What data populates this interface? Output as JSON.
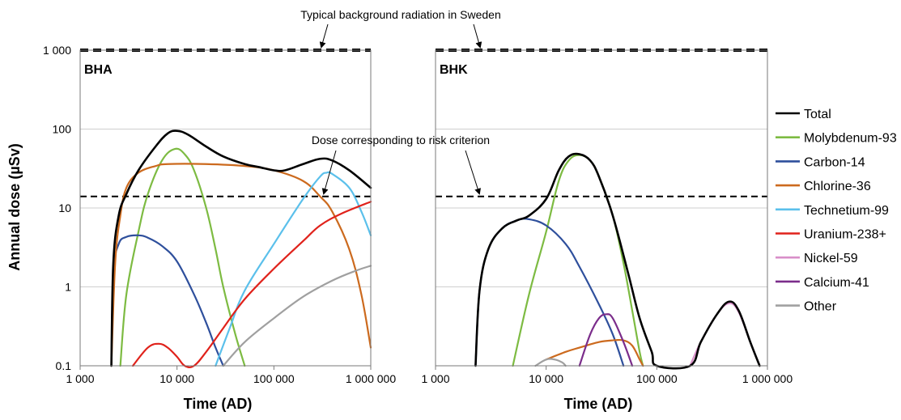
{
  "chart_data": {
    "type": "line",
    "x_scale": "log",
    "y_scale": "log",
    "xlim": [
      1000,
      1000000
    ],
    "ylim": [
      0.1,
      1000
    ],
    "ylabel": "Annual dose (µSv)",
    "xlabel": "Time (AD)",
    "x_ticks": [
      1000,
      10000,
      100000,
      1000000
    ],
    "x_tick_labels": [
      "1 000",
      "10 000",
      "100 000",
      "1 000 000"
    ],
    "y_ticks": [
      0.1,
      1,
      10,
      100,
      1000
    ],
    "y_tick_labels": [
      "0.1",
      "1",
      "10",
      "100",
      "1 000"
    ],
    "grid": "horizontal",
    "legend_position": "right",
    "reference_lines": [
      {
        "label": "Typical background radiation in Sweden",
        "value": 1000,
        "style": "thick-dashed"
      },
      {
        "label": "Dose corresponding to risk criterion",
        "value": 14,
        "style": "dashed"
      }
    ],
    "legend": [
      {
        "name": "Total",
        "color": "#000000"
      },
      {
        "name": "Molybdenum-93",
        "color": "#7dbb42"
      },
      {
        "name": "Carbon-14",
        "color": "#2e4f9c"
      },
      {
        "name": "Chlorine-36",
        "color": "#cc6a1e"
      },
      {
        "name": "Technetium-99",
        "color": "#5bc0eb"
      },
      {
        "name": "Uranium-238+",
        "color": "#e0221b"
      },
      {
        "name": "Nickel-59",
        "color": "#d98fc9"
      },
      {
        "name": "Calcium-41",
        "color": "#7b2d8b"
      },
      {
        "name": "Other",
        "color": "#a0a0a0"
      }
    ],
    "panels": [
      {
        "label": "BHA",
        "series": [
          {
            "name": "Total",
            "points": [
              [
                2100,
                0.1
              ],
              [
                2200,
                2
              ],
              [
                2500,
                8
              ],
              [
                3000,
                15
              ],
              [
                4000,
                30
              ],
              [
                6000,
                60
              ],
              [
                8000,
                88
              ],
              [
                10000,
                95
              ],
              [
                13000,
                85
              ],
              [
                20000,
                60
              ],
              [
                30000,
                45
              ],
              [
                50000,
                36
              ],
              [
                70000,
                33
              ],
              [
                100000,
                30
              ],
              [
                130000,
                30
              ],
              [
                200000,
                36
              ],
              [
                300000,
                42
              ],
              [
                400000,
                40
              ],
              [
                600000,
                30
              ],
              [
                1000000,
                18
              ]
            ]
          },
          {
            "name": "Molybdenum-93",
            "points": [
              [
                2600,
                0.1
              ],
              [
                3000,
                0.8
              ],
              [
                4000,
                5
              ],
              [
                5000,
                15
              ],
              [
                7000,
                40
              ],
              [
                9500,
                56
              ],
              [
                12000,
                48
              ],
              [
                15000,
                30
              ],
              [
                20000,
                10
              ],
              [
                25000,
                3
              ],
              [
                30000,
                1
              ],
              [
                40000,
                0.25
              ],
              [
                50000,
                0.1
              ]
            ]
          },
          {
            "name": "Carbon-14",
            "points": [
              [
                2100,
                0.1
              ],
              [
                2200,
                1.5
              ],
              [
                2500,
                3.5
              ],
              [
                3000,
                4.3
              ],
              [
                4000,
                4.5
              ],
              [
                5000,
                4.2
              ],
              [
                7000,
                3.3
              ],
              [
                10000,
                2.1
              ],
              [
                15000,
                0.8
              ],
              [
                20000,
                0.35
              ],
              [
                25000,
                0.17
              ],
              [
                30000,
                0.1
              ]
            ]
          },
          {
            "name": "Chlorine-36",
            "points": [
              [
                2100,
                0.1
              ],
              [
                2300,
                2
              ],
              [
                2600,
                8
              ],
              [
                3000,
                18
              ],
              [
                4000,
                28
              ],
              [
                6000,
                34
              ],
              [
                8000,
                36
              ],
              [
                20000,
                36
              ],
              [
                50000,
                34
              ],
              [
                100000,
                30
              ],
              [
                200000,
                22
              ],
              [
                300000,
                14
              ],
              [
                400000,
                9
              ],
              [
                600000,
                3
              ],
              [
                800000,
                0.8
              ],
              [
                1000000,
                0.17
              ]
            ]
          },
          {
            "name": "Technetium-99",
            "points": [
              [
                25000,
                0.1
              ],
              [
                35000,
                0.3
              ],
              [
                50000,
                0.9
              ],
              [
                100000,
                3.5
              ],
              [
                200000,
                13
              ],
              [
                300000,
                25
              ],
              [
                350000,
                28
              ],
              [
                400000,
                27
              ],
              [
                600000,
                18
              ],
              [
                800000,
                9
              ],
              [
                1000000,
                4.5
              ]
            ]
          },
          {
            "name": "Uranium-238+",
            "points": [
              [
                3500,
                0.1
              ],
              [
                5000,
                0.17
              ],
              [
                6500,
                0.19
              ],
              [
                8000,
                0.17
              ],
              [
                10000,
                0.13
              ],
              [
                12000,
                0.1
              ],
              [
                15000,
                0.1
              ],
              [
                20000,
                0.15
              ],
              [
                30000,
                0.3
              ],
              [
                50000,
                0.7
              ],
              [
                100000,
                1.7
              ],
              [
                200000,
                3.8
              ],
              [
                300000,
                6
              ],
              [
                500000,
                8.5
              ],
              [
                1000000,
                12
              ]
            ]
          },
          {
            "name": "Other",
            "points": [
              [
                30000,
                0.1
              ],
              [
                50000,
                0.2
              ],
              [
                100000,
                0.4
              ],
              [
                200000,
                0.75
              ],
              [
                400000,
                1.2
              ],
              [
                700000,
                1.6
              ],
              [
                1000000,
                1.85
              ]
            ]
          }
        ]
      },
      {
        "label": "BHK",
        "series": [
          {
            "name": "Total",
            "points": [
              [
                2300,
                0.1
              ],
              [
                2500,
                0.9
              ],
              [
                3000,
                3
              ],
              [
                4000,
                5.5
              ],
              [
                5500,
                7
              ],
              [
                7000,
                8
              ],
              [
                10000,
                13
              ],
              [
                13000,
                30
              ],
              [
                16000,
                45
              ],
              [
                20000,
                48
              ],
              [
                25000,
                40
              ],
              [
                30000,
                25
              ],
              [
                40000,
                8
              ],
              [
                55000,
                1.5
              ],
              [
                70000,
                0.4
              ],
              [
                90000,
                0.15
              ],
              [
                100000,
                0.1
              ],
              [
                200000,
                0.1
              ],
              [
                250000,
                0.2
              ],
              [
                350000,
                0.45
              ],
              [
                450000,
                0.65
              ],
              [
                550000,
                0.5
              ],
              [
                700000,
                0.2
              ],
              [
                850000,
                0.1
              ]
            ]
          },
          {
            "name": "Molybdenum-93",
            "points": [
              [
                5000,
                0.1
              ],
              [
                7000,
                0.8
              ],
              [
                10000,
                5
              ],
              [
                13000,
                22
              ],
              [
                16000,
                40
              ],
              [
                20000,
                47
              ],
              [
                25000,
                40
              ],
              [
                30000,
                25
              ],
              [
                40000,
                8
              ],
              [
                50000,
                2
              ],
              [
                60000,
                0.5
              ],
              [
                70000,
                0.15
              ],
              [
                75000,
                0.1
              ]
            ]
          },
          {
            "name": "Carbon-14",
            "points": [
              [
                2300,
                0.1
              ],
              [
                2500,
                0.9
              ],
              [
                3000,
                3
              ],
              [
                4000,
                5.5
              ],
              [
                5500,
                7
              ],
              [
                7000,
                7.2
              ],
              [
                10000,
                6
              ],
              [
                15000,
                3.5
              ],
              [
                20000,
                1.8
              ],
              [
                30000,
                0.6
              ],
              [
                40000,
                0.25
              ],
              [
                50000,
                0.1
              ]
            ]
          },
          {
            "name": "Chlorine-36",
            "points": [
              [
                10000,
                0.12
              ],
              [
                15000,
                0.15
              ],
              [
                20000,
                0.17
              ],
              [
                30000,
                0.2
              ],
              [
                40000,
                0.21
              ],
              [
                50000,
                0.21
              ],
              [
                60000,
                0.18
              ],
              [
                70000,
                0.12
              ],
              [
                75000,
                0.1
              ]
            ]
          },
          {
            "name": "Nickel-59",
            "points": [
              [
                200000,
                0.1
              ],
              [
                250000,
                0.2
              ],
              [
                350000,
                0.45
              ],
              [
                450000,
                0.62
              ],
              [
                550000,
                0.48
              ],
              [
                700000,
                0.2
              ],
              [
                850000,
                0.1
              ]
            ]
          },
          {
            "name": "Calcium-41",
            "points": [
              [
                20000,
                0.1
              ],
              [
                25000,
                0.25
              ],
              [
                30000,
                0.4
              ],
              [
                35000,
                0.45
              ],
              [
                40000,
                0.4
              ],
              [
                50000,
                0.2
              ],
              [
                60000,
                0.1
              ]
            ]
          },
          {
            "name": "Other",
            "points": [
              [
                8000,
                0.1
              ],
              [
                10000,
                0.12
              ],
              [
                12000,
                0.12
              ],
              [
                14000,
                0.11
              ],
              [
                15000,
                0.1
              ]
            ]
          }
        ]
      }
    ]
  }
}
